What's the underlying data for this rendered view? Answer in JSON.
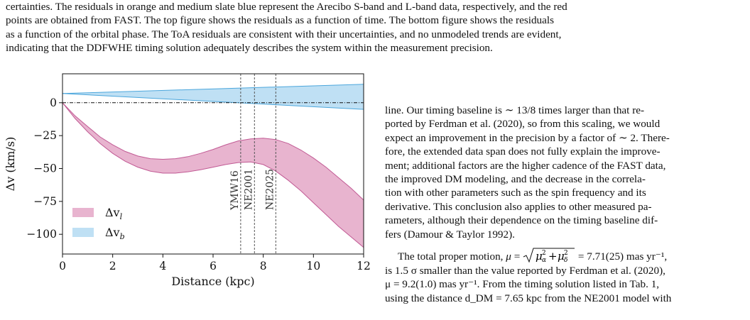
{
  "caption": {
    "lines": [
      "certainties. The residuals in orange and medium slate blue represent the Arecibo S-band and L-band data, respectively, and the red",
      "points are obtained from FAST. The top figure shows the residuals as a function of time. The bottom figure shows the residuals",
      "as a function of the orbital phase. The ToA residuals are consistent with their uncertainties, and no unmodeled trends are evident,",
      "indicating that the DDFWHE timing solution adequately describes the system within the measurement precision."
    ]
  },
  "chart_data": {
    "type": "area",
    "xlabel": "Distance (kpc)",
    "ylabel": "Δv (km/s)",
    "xlim": [
      0,
      12
    ],
    "ylim": [
      -115,
      22
    ],
    "xticks": [
      0,
      2,
      4,
      6,
      8,
      10,
      12
    ],
    "yticks": [
      0,
      -25,
      -50,
      -75,
      -100
    ],
    "ytick_labels": [
      "0",
      "−25",
      "−50",
      "−75",
      "−100"
    ],
    "zero_line": true,
    "legend_position": "lower-left",
    "series": [
      {
        "name": "Δv_l",
        "legend_label": "Δv",
        "legend_sub": "l",
        "color": "#e8b4cf",
        "edge": "#c15a94",
        "x": [
          0,
          0.5,
          1,
          1.5,
          2,
          2.5,
          3,
          3.5,
          4,
          4.5,
          5,
          5.5,
          6,
          6.5,
          7,
          7.5,
          8,
          8.5,
          9,
          9.5,
          10,
          10.5,
          11,
          11.5,
          12
        ],
        "upper": [
          0,
          -10,
          -18,
          -26,
          -32,
          -37,
          -40.5,
          -42.5,
          -43,
          -42.5,
          -41,
          -38.5,
          -35.5,
          -32,
          -29,
          -27.5,
          -27,
          -28,
          -31,
          -36,
          -42,
          -49,
          -57,
          -65,
          -74
        ],
        "lower": [
          0,
          -12,
          -22,
          -31,
          -38.5,
          -44.5,
          -49,
          -52,
          -53.5,
          -53.5,
          -52.5,
          -51,
          -49,
          -47,
          -45.5,
          -45,
          -47,
          -52,
          -59,
          -67,
          -76,
          -85,
          -94,
          -102,
          -110
        ]
      },
      {
        "name": "Δv_b",
        "legend_label": "Δv",
        "legend_sub": "b",
        "color": "#bfe0f4",
        "edge": "#4ba6dc",
        "x": [
          0,
          12
        ],
        "upper": [
          7,
          14
        ],
        "lower": [
          7,
          -5
        ]
      }
    ],
    "vlines": [
      {
        "x": 7.1,
        "label": "YMW16"
      },
      {
        "x": 7.65,
        "label": "NE2001"
      },
      {
        "x": 8.5,
        "label": "NE2025"
      }
    ]
  },
  "body": {
    "para1": [
      "line. Our timing baseline is ∼ 13/8 times larger than that re-",
      "ported by Ferdman et al. (2020), so from this scaling, we would",
      "expect an improvement in the precision by a factor of ∼ 2. There-",
      "fore, the extended data span does not fully explain the improve-",
      "ment; additional factors are the higher cadence of the FAST data,",
      "the improved DM modeling, and the decrease in the correla-",
      "tion with other parameters such as the spin frequency and its",
      "derivative. This conclusion also applies to other measured pa-",
      "rameters, although their dependence on the timing baseline dif-",
      "fers (Damour & Taylor 1992)."
    ],
    "para2_lead": "The total proper motion,",
    "para2_eq": "= 7.71(25) mas yr⁻¹,",
    "para2_lines": [
      "is 1.5 σ smaller than the value reported by Ferdman et al. (2020),",
      "μ = 9.2(1.0) mas yr⁻¹. From the timing solution listed in Tab. 1,",
      "using the distance d_DM = 7.65 kpc from the NE2001 model with"
    ]
  }
}
